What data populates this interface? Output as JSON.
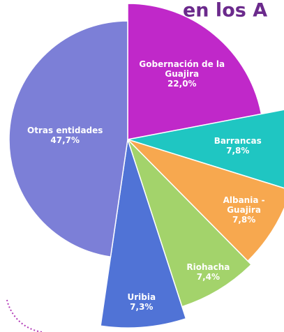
{
  "chart_data": {
    "type": "pie",
    "title": "en los A",
    "categories": [
      "Gobernación de la Guajira",
      "Barrancas",
      "Albania - Guajira",
      "Riohacha",
      "Uribia",
      "Otras entidades"
    ],
    "values": [
      22.0,
      7.8,
      7.8,
      7.4,
      7.3,
      47.7
    ],
    "value_labels": [
      "22,0%",
      "7,8%",
      "7,8%",
      "7,4%",
      "7,3%",
      "47,7%"
    ],
    "colors": [
      "#c028c9",
      "#1fc6c2",
      "#f7a84f",
      "#a3d36b",
      "#5073d6",
      "#7c7fd7"
    ]
  }
}
